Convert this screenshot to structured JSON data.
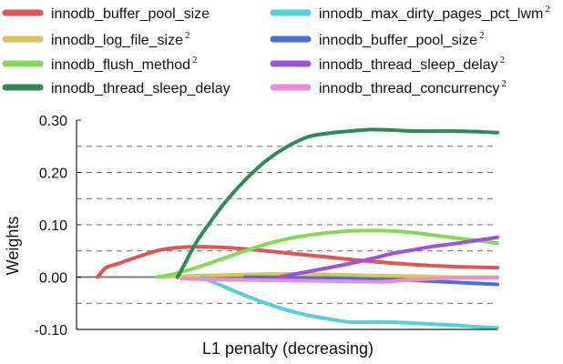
{
  "chart_data": {
    "type": "line",
    "xlabel": "L1 penalty (decreasing)",
    "ylabel": "Weights",
    "xlim": [
      0,
      100
    ],
    "ylim": [
      -0.1,
      0.3
    ],
    "yticks": [
      -0.1,
      0.0,
      0.1,
      0.2,
      0.3
    ],
    "ytick_labels": [
      "-0.10",
      "0.00",
      "0.10",
      "0.20",
      "0.30"
    ],
    "grid": "horizontal dashed",
    "legend_position": "top",
    "series": [
      {
        "name": "innodb_buffer_pool_size",
        "color": "#e05555",
        "x": [
          5,
          7,
          10,
          15,
          20,
          25,
          30,
          40,
          50,
          60,
          70,
          80,
          90,
          100
        ],
        "y": [
          0.0,
          0.018,
          0.026,
          0.04,
          0.052,
          0.057,
          0.058,
          0.054,
          0.046,
          0.038,
          0.03,
          0.024,
          0.02,
          0.018
        ]
      },
      {
        "name": "innodb_log_file_size",
        "sup": "2",
        "color": "#d8c65a",
        "x": [
          20,
          30,
          40,
          50,
          60,
          70,
          80,
          90,
          100
        ],
        "y": [
          0.0,
          0.003,
          0.005,
          0.006,
          0.005,
          0.003,
          0.002,
          0.0,
          0.0
        ]
      },
      {
        "name": "innodb_flush_method",
        "sup": "2",
        "color": "#85d95a",
        "x": [
          19,
          22,
          25,
          30,
          35,
          40,
          45,
          50,
          55,
          60,
          65,
          70,
          75,
          80,
          85,
          90,
          95,
          100
        ],
        "y": [
          0.0,
          0.004,
          0.01,
          0.022,
          0.036,
          0.05,
          0.063,
          0.073,
          0.08,
          0.085,
          0.088,
          0.089,
          0.088,
          0.085,
          0.08,
          0.075,
          0.07,
          0.065
        ]
      },
      {
        "name": "innodb_thread_sleep_delay",
        "color": "#2e8a57",
        "x": [
          24,
          26,
          28,
          30,
          35,
          40,
          45,
          50,
          55,
          60,
          65,
          70,
          75,
          80,
          85,
          90,
          95,
          100
        ],
        "y": [
          0.0,
          0.03,
          0.06,
          0.085,
          0.14,
          0.185,
          0.222,
          0.249,
          0.268,
          0.275,
          0.279,
          0.282,
          0.281,
          0.279,
          0.279,
          0.279,
          0.278,
          0.276
        ]
      },
      {
        "name": "innodb_max_dirty_pages_pct_lwm",
        "sup": "2",
        "color": "#55d0d8",
        "x": [
          30,
          32,
          35,
          40,
          45,
          50,
          55,
          60,
          65,
          70,
          75,
          80,
          85,
          90,
          95,
          100
        ],
        "y": [
          0.0,
          -0.008,
          -0.018,
          -0.035,
          -0.05,
          -0.063,
          -0.073,
          -0.08,
          -0.086,
          -0.086,
          -0.086,
          -0.088,
          -0.09,
          -0.092,
          -0.095,
          -0.097
        ]
      },
      {
        "name": "innodb_buffer_pool_size",
        "sup": "2",
        "color": "#4a6edc",
        "x": [
          40,
          50,
          60,
          70,
          80,
          90,
          100
        ],
        "y": [
          0.0,
          -0.001,
          -0.002,
          -0.004,
          -0.006,
          -0.01,
          -0.014
        ]
      },
      {
        "name": "innodb_thread_sleep_delay",
        "sup": "2",
        "color": "#9b55d8",
        "x": [
          48,
          52,
          56,
          60,
          65,
          70,
          75,
          80,
          85,
          90,
          95,
          100
        ],
        "y": [
          0.0,
          0.006,
          0.012,
          0.018,
          0.026,
          0.035,
          0.045,
          0.052,
          0.059,
          0.064,
          0.07,
          0.076
        ]
      },
      {
        "name": "innodb_thread_concurrency",
        "sup": "2",
        "color": "#f08ad6",
        "x": [
          25,
          35,
          45,
          55,
          65,
          72,
          78,
          85,
          92,
          100
        ],
        "y": [
          -0.003,
          -0.005,
          -0.006,
          -0.007,
          -0.008,
          -0.009,
          -0.006,
          -0.003,
          -0.001,
          -0.001
        ]
      }
    ]
  }
}
